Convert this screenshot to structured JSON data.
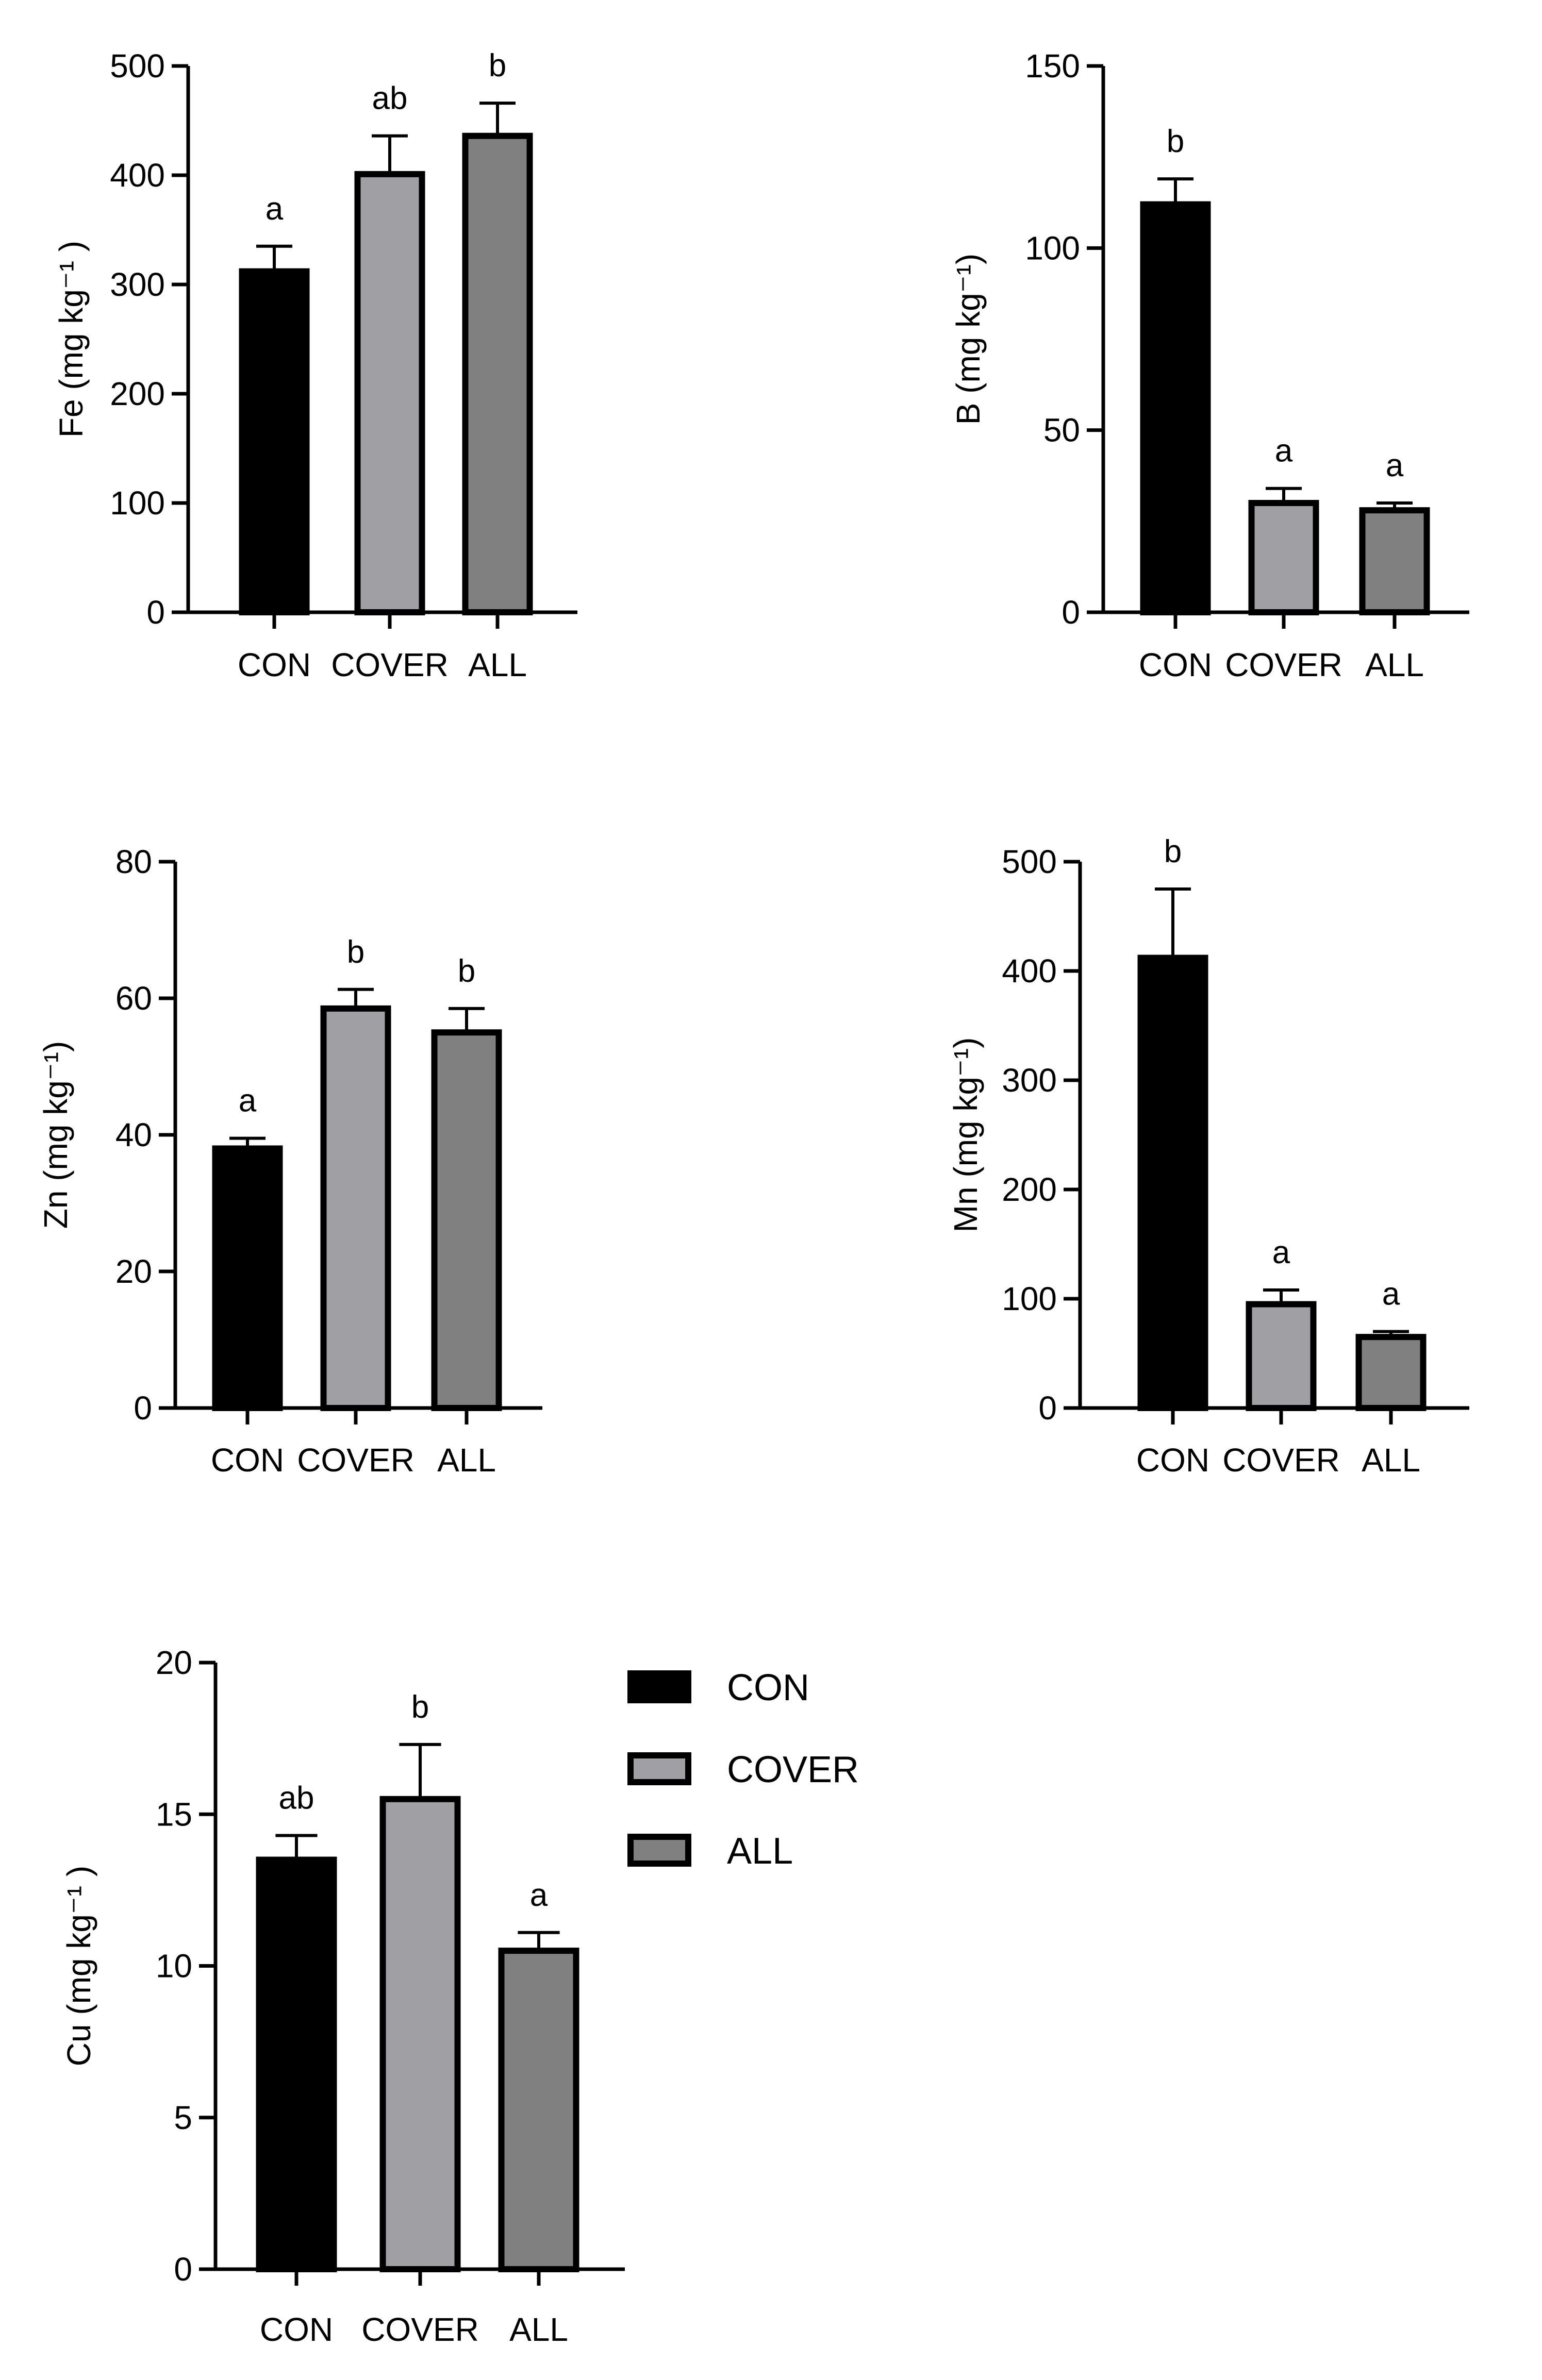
{
  "chart_data": [
    {
      "type": "bar",
      "categories": [
        "CON",
        "COVER",
        "ALL"
      ],
      "values": [
        312,
        401,
        436
      ],
      "errors": [
        23,
        35,
        30
      ],
      "significance": [
        "a",
        "ab",
        "b"
      ],
      "ylabel": "Fe (mg kg⁻¹ )",
      "ylim": [
        0,
        500
      ],
      "yticks": [
        0,
        100,
        200,
        300,
        400,
        500
      ],
      "grid": false,
      "colors": [
        "#000000",
        "#a0a0a4",
        "#808080"
      ]
    },
    {
      "type": "bar",
      "categories": [
        "CON",
        "COVER",
        "ALL"
      ],
      "values": [
        112,
        30,
        28
      ],
      "errors": [
        7,
        4,
        2
      ],
      "significance": [
        "b",
        "a",
        "a"
      ],
      "ylabel": "B (mg kg⁻¹)",
      "ylim": [
        0,
        150
      ],
      "yticks": [
        0,
        50,
        100,
        150
      ],
      "grid": false,
      "colors": [
        "#000000",
        "#a0a0a4",
        "#808080"
      ]
    },
    {
      "type": "bar",
      "categories": [
        "CON",
        "COVER",
        "ALL"
      ],
      "values": [
        38,
        58.5,
        55
      ],
      "errors": [
        1.5,
        2.8,
        3.5
      ],
      "significance": [
        "a",
        "b",
        "b"
      ],
      "ylabel": "Zn (mg kg⁻¹)",
      "ylim": [
        0,
        80
      ],
      "yticks": [
        0,
        20,
        40,
        60,
        80
      ],
      "grid": false,
      "colors": [
        "#000000",
        "#a0a0a4",
        "#808080"
      ]
    },
    {
      "type": "bar",
      "categories": [
        "CON",
        "COVER",
        "ALL"
      ],
      "values": [
        412,
        95,
        65
      ],
      "errors": [
        63,
        13,
        5
      ],
      "significance": [
        "b",
        "a",
        "a"
      ],
      "ylabel": "Mn (mg kg⁻¹)",
      "ylim": [
        0,
        500
      ],
      "yticks": [
        0,
        100,
        200,
        300,
        400,
        500
      ],
      "grid": false,
      "colors": [
        "#000000",
        "#a0a0a4",
        "#808080"
      ]
    },
    {
      "type": "bar",
      "categories": [
        "CON",
        "COVER",
        "ALL"
      ],
      "values": [
        13.5,
        15.5,
        10.5
      ],
      "errors": [
        0.8,
        1.8,
        0.6
      ],
      "significance": [
        "ab",
        "b",
        "a"
      ],
      "ylabel": "Cu (mg kg⁻¹ )",
      "ylim": [
        0,
        20
      ],
      "yticks": [
        0,
        5,
        10,
        15,
        20
      ],
      "grid": false,
      "colors": [
        "#000000",
        "#a0a0a4",
        "#808080"
      ]
    }
  ],
  "legend": {
    "placement": "right of bottom chart",
    "items": [
      {
        "label": "CON",
        "color": "#000000"
      },
      {
        "label": "COVER",
        "color": "#a0a0a4"
      },
      {
        "label": "ALL",
        "color": "#808080"
      }
    ]
  }
}
